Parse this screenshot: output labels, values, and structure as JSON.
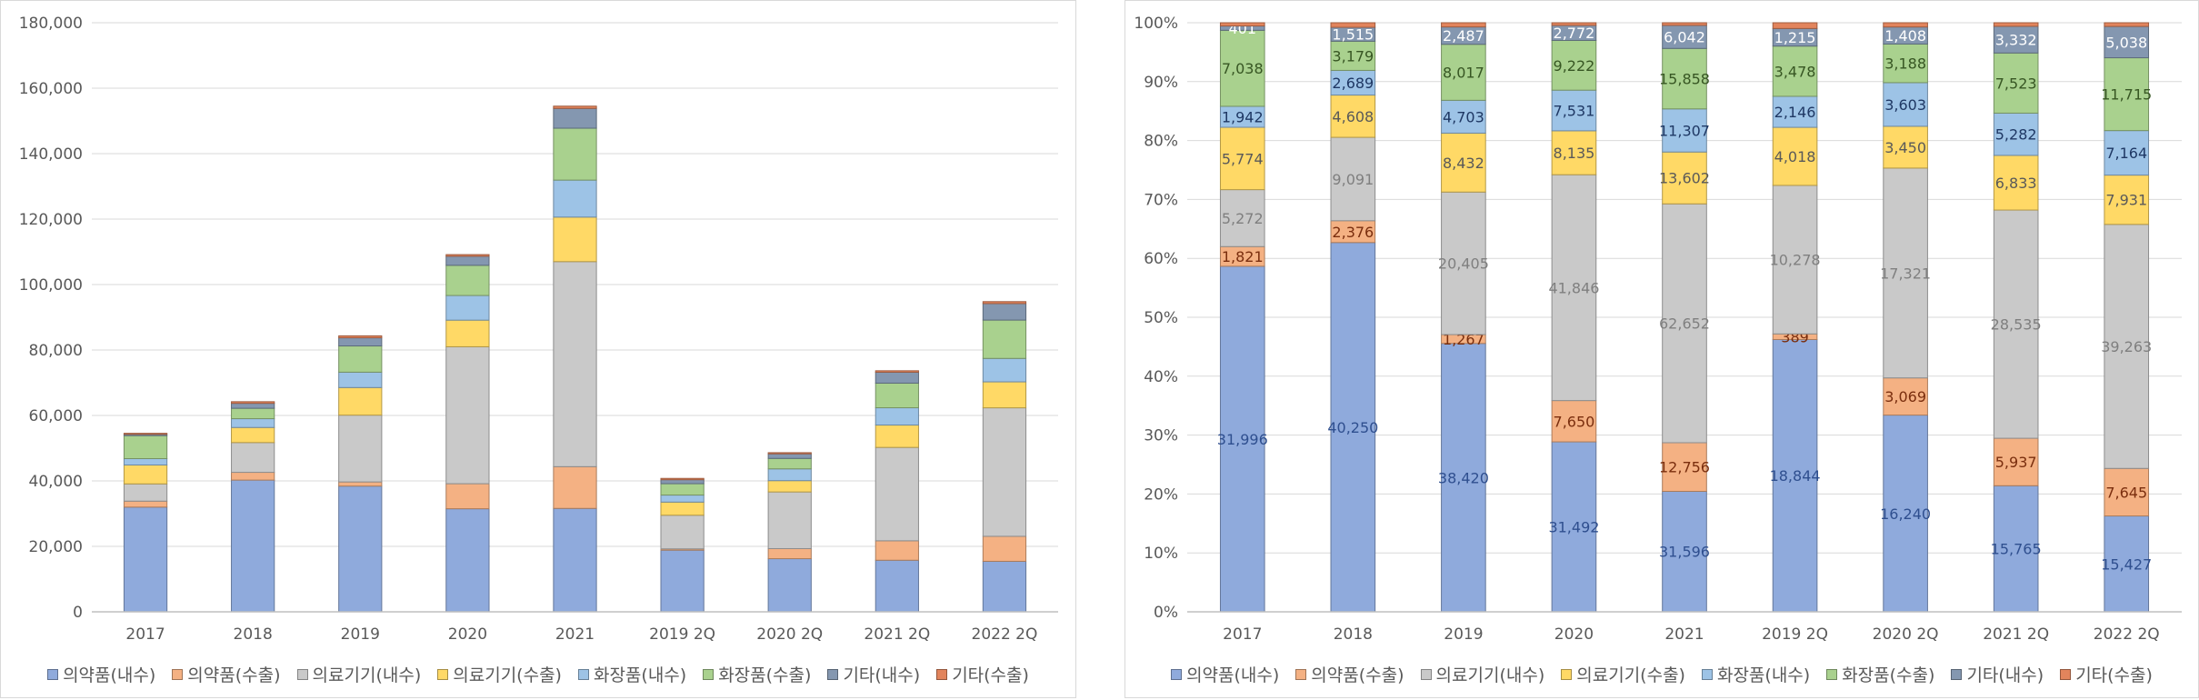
{
  "chart_data": [
    {
      "type": "bar",
      "stacked": true,
      "categories": [
        "2017",
        "2018",
        "2019",
        "2020",
        "2021",
        "2019 2Q",
        "2020 2Q",
        "2021 2Q",
        "2022 2Q"
      ],
      "ylim": [
        0,
        180000
      ],
      "yticks": [
        "0",
        "20,000",
        "40,000",
        "60,000",
        "80,000",
        "100,000",
        "120,000",
        "140,000",
        "160,000",
        "180,000"
      ],
      "grid": true,
      "legend_position": "bottom",
      "series": [
        {
          "name": "의약품(내수)",
          "color": "#8faadc",
          "values": [
            31996,
            40250,
            38420,
            31492,
            31596,
            18844,
            16240,
            15765,
            15427
          ]
        },
        {
          "name": "의약품(수출)",
          "color": "#f4b183",
          "values": [
            1821,
            2376,
            1267,
            7650,
            12756,
            389,
            3069,
            5937,
            7645
          ]
        },
        {
          "name": "의료기기(내수)",
          "color": "#c9c9c9",
          "values": [
            5272,
            9091,
            20405,
            41846,
            62652,
            10278,
            17321,
            28535,
            39263
          ]
        },
        {
          "name": "의료기기(수출)",
          "color": "#ffd966",
          "values": [
            5774,
            4608,
            8432,
            8135,
            13602,
            4018,
            3450,
            6833,
            7931
          ]
        },
        {
          "name": "화장품(내수)",
          "color": "#9dc3e6",
          "values": [
            1942,
            2689,
            4703,
            7531,
            11307,
            2146,
            3603,
            5282,
            7164
          ]
        },
        {
          "name": "화장품(수출)",
          "color": "#a9d18e",
          "values": [
            7038,
            3179,
            8017,
            9222,
            15858,
            3478,
            3188,
            7523,
            11715
          ]
        },
        {
          "name": "기타(내수)",
          "color": "#8497b0",
          "values": [
            401,
            1515,
            2487,
            2772,
            6042,
            1215,
            1408,
            3332,
            5038
          ]
        },
        {
          "name": "기타(수출)",
          "color": "#e2845c",
          "values": [
            300,
            500,
            600,
            500,
            700,
            400,
            350,
            450,
            600
          ]
        }
      ]
    },
    {
      "type": "bar",
      "stacked": true,
      "percent": true,
      "categories": [
        "2017",
        "2018",
        "2019",
        "2020",
        "2021",
        "2019 2Q",
        "2020 2Q",
        "2021 2Q",
        "2022 2Q"
      ],
      "ylim": [
        0,
        100
      ],
      "yticks": [
        "0%",
        "10%",
        "20%",
        "30%",
        "40%",
        "50%",
        "60%",
        "70%",
        "80%",
        "90%",
        "100%"
      ],
      "grid": true,
      "legend_position": "bottom",
      "data_labels": {
        "의약품(내수)": [
          "31,996",
          "40,250",
          "38,420",
          "31,492",
          "31,596",
          "18,844",
          "16,240",
          "15,765",
          "15,427"
        ],
        "의약품(수출)": [
          "1,821",
          "2,376",
          "1,267",
          "7,650",
          "12,756",
          "389",
          "3,069",
          "5,937",
          "7,645"
        ],
        "의료기기(내수)": [
          "5,272",
          "9,091",
          "20,405",
          "41,846",
          "62,652",
          "10,278",
          "17,321",
          "28,535",
          "39,263"
        ],
        "의료기기(수출)": [
          "5,774",
          "4,608",
          "8,432",
          "8,135",
          "13,602",
          "4,018",
          "3,450",
          "6,833",
          "7,931"
        ],
        "화장품(내수)": [
          "1,942",
          "2,689",
          "4,703",
          "7,531",
          "11,307",
          "2,146",
          "3,603",
          "5,282",
          "7,164"
        ],
        "화장품(수출)": [
          "7,038",
          "3,179",
          "8,017",
          "9,222",
          "15,858",
          "3,478",
          "3,188",
          "7,523",
          "11,715"
        ],
        "기타(내수)": [
          "401",
          "1,515",
          "2,487",
          "2,772",
          "6,042",
          "1,215",
          "1,408",
          "3,332",
          "5,038"
        ]
      },
      "label_colors": {
        "의약품(내수)": "#2f4f8f",
        "의약품(수출)": "#7a2e0e",
        "의료기기(내수)": "#7f7f7f",
        "의료기기(수출)": "#595959",
        "화장품(내수)": "#1f3864",
        "화장품(수출)": "#375623",
        "기타(내수)": "#ffffff"
      }
    }
  ],
  "legend": [
    "의약품(내수)",
    "의약품(수출)",
    "의료기기(내수)",
    "의료기기(수출)",
    "화장품(내수)",
    "화장품(수출)",
    "기타(내수)",
    "기타(수출)"
  ]
}
